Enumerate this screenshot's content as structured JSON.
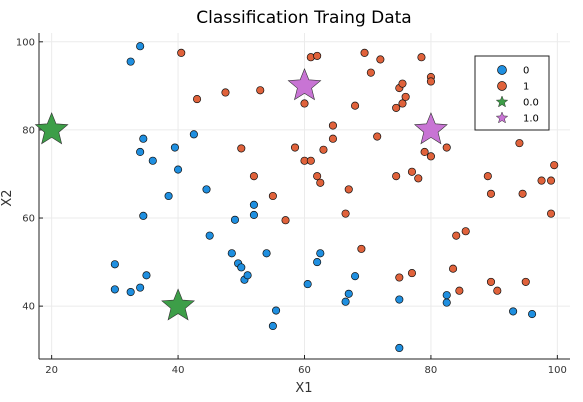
{
  "chart_data": {
    "type": "scatter",
    "title": "Classification Traing Data",
    "xlabel": "X1",
    "ylabel": "X2",
    "xlim": [
      18,
      102
    ],
    "ylim": [
      28,
      102
    ],
    "xticks": [
      20,
      40,
      60,
      80,
      100
    ],
    "yticks": [
      40,
      60,
      80,
      100
    ],
    "grid": true,
    "legend_position": "top-right",
    "series": [
      {
        "name": "0",
        "marker": "circle",
        "color": "#1f8fe0",
        "points": [
          [
            32.5,
            95.5
          ],
          [
            34,
            99
          ],
          [
            34.5,
            78
          ],
          [
            34,
            75
          ],
          [
            36,
            73
          ],
          [
            39.5,
            76
          ],
          [
            40,
            71
          ],
          [
            42.5,
            79
          ],
          [
            38.5,
            65
          ],
          [
            44.5,
            66.5
          ],
          [
            34.5,
            60.5
          ],
          [
            45,
            56
          ],
          [
            30,
            49.5
          ],
          [
            30,
            43.8
          ],
          [
            32.5,
            43.2
          ],
          [
            34,
            44.2
          ],
          [
            35,
            47
          ],
          [
            48.5,
            52
          ],
          [
            49.5,
            49.7
          ],
          [
            50,
            48.8
          ],
          [
            50.5,
            46
          ],
          [
            51,
            47
          ],
          [
            49,
            59.6
          ],
          [
            52,
            63
          ],
          [
            52,
            60.7
          ],
          [
            54,
            52
          ],
          [
            55.5,
            39
          ],
          [
            55,
            35.5
          ],
          [
            60.5,
            45
          ],
          [
            62,
            50
          ],
          [
            62.5,
            52
          ],
          [
            66.5,
            41
          ],
          [
            67,
            42.8
          ],
          [
            68,
            46.8
          ],
          [
            75,
            41.5
          ],
          [
            75,
            30.5
          ],
          [
            82.5,
            42.5
          ],
          [
            82.5,
            40.8
          ],
          [
            93,
            38.8
          ],
          [
            96,
            38.2
          ]
        ]
      },
      {
        "name": "1",
        "marker": "circle",
        "color": "#e0623b",
        "points": [
          [
            40.5,
            97.5
          ],
          [
            43,
            87
          ],
          [
            47.5,
            88.5
          ],
          [
            53,
            89
          ],
          [
            60,
            86
          ],
          [
            61,
            96.5
          ],
          [
            62,
            96.8
          ],
          [
            63,
            75.5
          ],
          [
            64.5,
            81
          ],
          [
            64.5,
            78
          ],
          [
            69.5,
            97.5
          ],
          [
            70.5,
            93
          ],
          [
            72,
            96
          ],
          [
            68,
            85.5
          ],
          [
            71.5,
            78.5
          ],
          [
            74.5,
            85
          ],
          [
            75,
            89.5
          ],
          [
            75.5,
            90.5
          ],
          [
            75.5,
            86
          ],
          [
            76,
            87.5
          ],
          [
            78.5,
            96.5
          ],
          [
            80,
            92
          ],
          [
            80,
            91
          ],
          [
            79,
            75
          ],
          [
            80,
            74
          ],
          [
            82.5,
            76
          ],
          [
            50,
            75.8
          ],
          [
            52,
            69.5
          ],
          [
            55,
            65
          ],
          [
            57,
            59.5
          ],
          [
            58.5,
            76
          ],
          [
            60,
            73
          ],
          [
            61,
            73
          ],
          [
            62,
            69.5
          ],
          [
            62.5,
            68
          ],
          [
            66.5,
            61
          ],
          [
            67,
            66.5
          ],
          [
            69,
            53
          ],
          [
            74.5,
            69.5
          ],
          [
            77,
            70.5
          ],
          [
            78,
            69
          ],
          [
            83.5,
            48.5
          ],
          [
            84,
            56
          ],
          [
            84.5,
            43.5
          ],
          [
            85.5,
            57
          ],
          [
            75,
            46.5
          ],
          [
            77,
            47.5
          ],
          [
            89,
            69.5
          ],
          [
            89.5,
            65.5
          ],
          [
            89.5,
            45.5
          ],
          [
            90.5,
            43.5
          ],
          [
            94,
            77
          ],
          [
            94.5,
            65.5
          ],
          [
            95,
            45.5
          ],
          [
            97.5,
            68.5
          ],
          [
            99,
            68.5
          ],
          [
            99.5,
            72
          ],
          [
            99,
            61
          ]
        ]
      },
      {
        "name": "0.0",
        "marker": "star",
        "color": "#3d9e48",
        "points": [
          [
            20,
            80
          ],
          [
            40,
            40
          ]
        ]
      },
      {
        "name": "1.0",
        "marker": "star",
        "color": "#c874d4",
        "points": [
          [
            60,
            90
          ],
          [
            80,
            80
          ]
        ]
      }
    ]
  }
}
